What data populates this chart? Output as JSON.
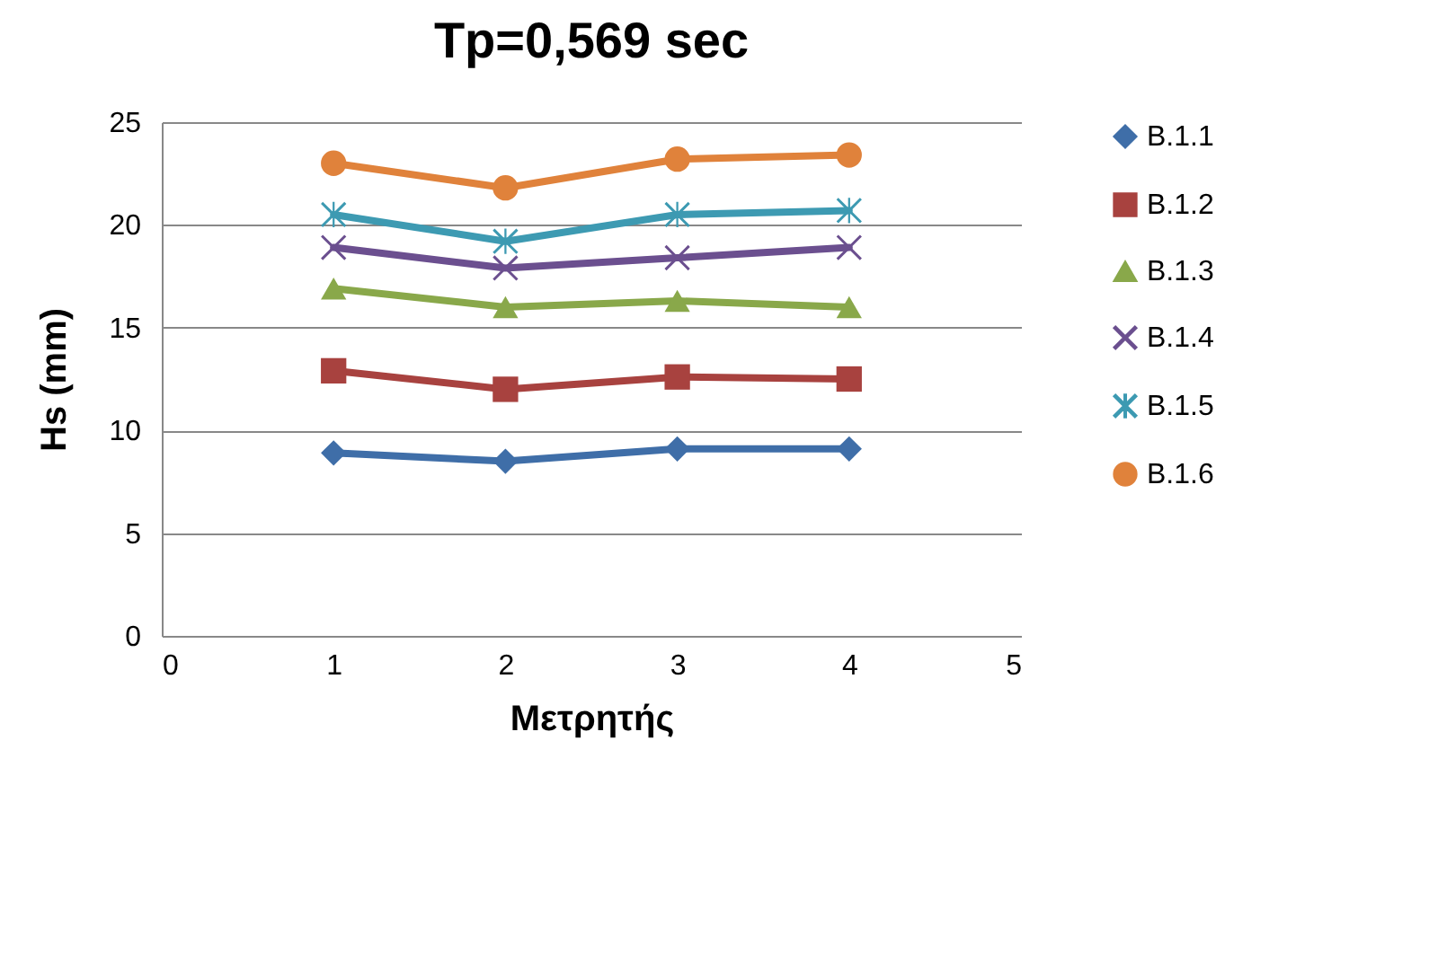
{
  "chart_data": {
    "type": "line",
    "title": "Tp=0,569 sec",
    "xlabel": "Μετρητής",
    "ylabel": "Hs (mm)",
    "x": [
      1,
      2,
      3,
      4
    ],
    "xlim": [
      0,
      5
    ],
    "xticks": [
      0,
      1,
      2,
      3,
      4,
      5
    ],
    "ylim": [
      0,
      25
    ],
    "yticks": [
      0,
      5,
      10,
      15,
      20,
      25
    ],
    "grid": "y",
    "legend": "right",
    "line_style": "solid",
    "series": [
      {
        "name": "B.1.1",
        "color": "#3f6ea8",
        "marker": "diamond",
        "values": [
          8.9,
          8.5,
          9.1,
          9.1
        ]
      },
      {
        "name": "B.1.2",
        "color": "#a8423f",
        "marker": "square",
        "values": [
          12.9,
          12.0,
          12.6,
          12.5
        ]
      },
      {
        "name": "B.1.3",
        "color": "#89a84a",
        "marker": "triangle",
        "values": [
          16.9,
          16.0,
          16.3,
          16.0
        ]
      },
      {
        "name": "B.1.4",
        "color": "#6b4f8f",
        "marker": "cross",
        "values": [
          18.9,
          17.9,
          18.4,
          18.9
        ]
      },
      {
        "name": "B.1.5",
        "color": "#3d9ab2",
        "marker": "star",
        "values": [
          20.5,
          19.2,
          20.5,
          20.7
        ]
      },
      {
        "name": "B.1.6",
        "color": "#e0823b",
        "marker": "circle",
        "values": [
          23.0,
          21.8,
          23.2,
          23.4
        ]
      }
    ]
  }
}
